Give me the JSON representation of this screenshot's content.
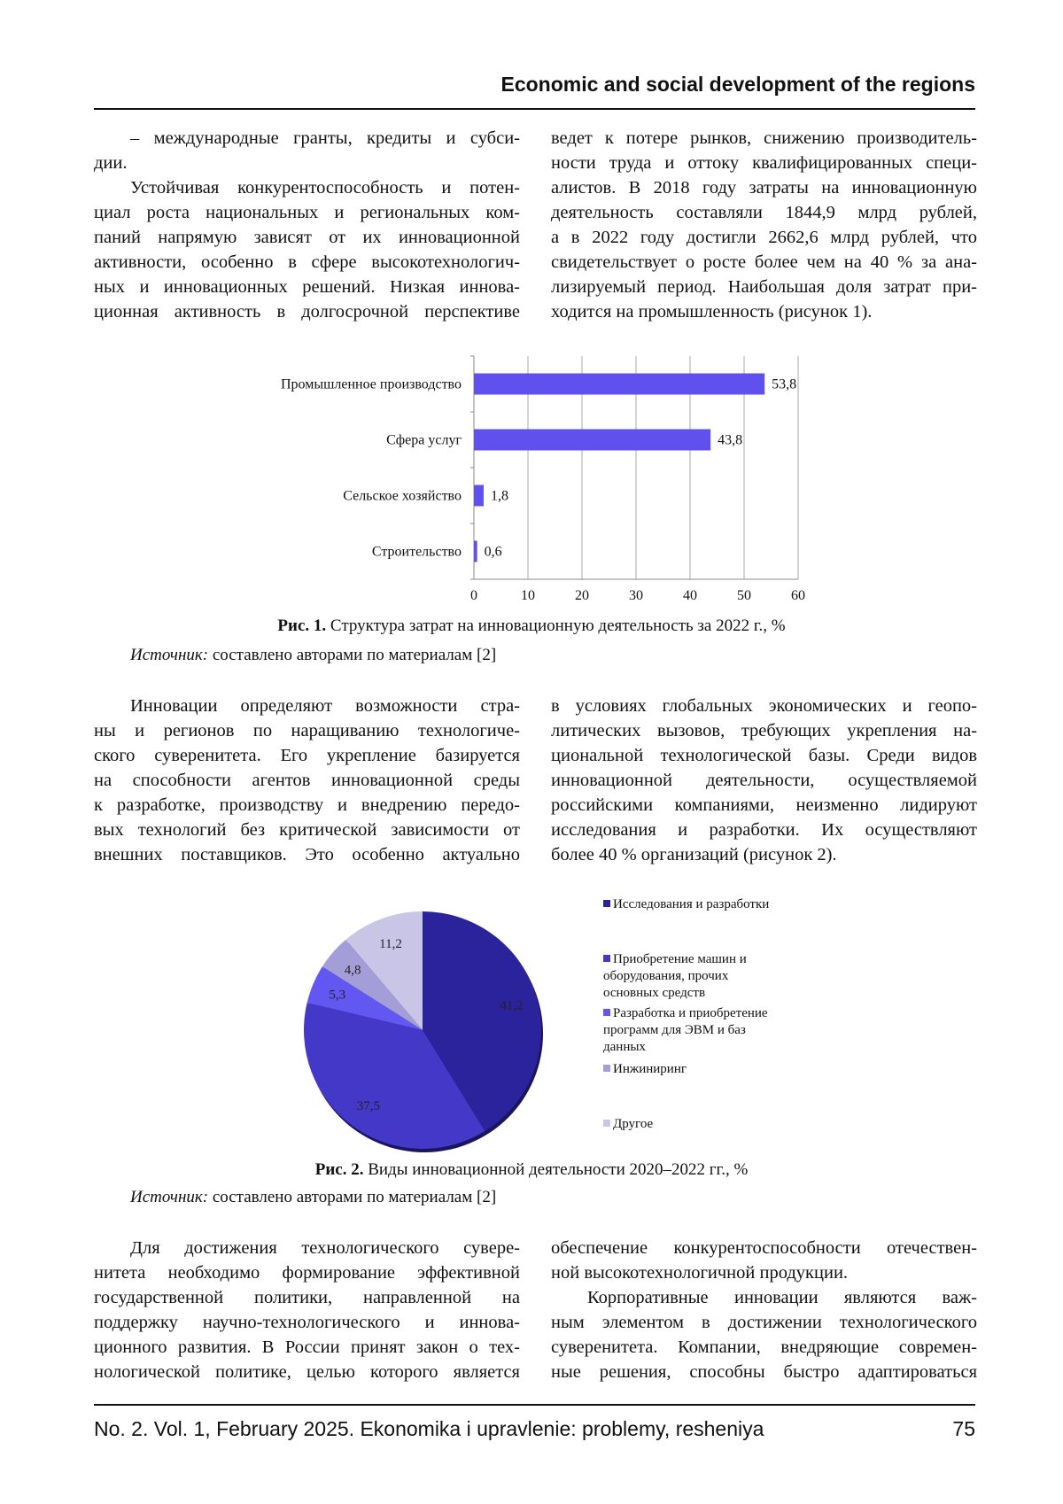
{
  "header": {
    "title": "Economic and social development of the regions"
  },
  "blocks": {
    "b1l": [
      "– международные гранты, кредиты и субси-",
      "дии.",
      "Устойчивая конкурентоспособность и потен-",
      "циал роста национальных и региональных ком-",
      "паний напрямую зависят от их инновационной",
      "активности, особенно в сфере высокотехнологич-",
      "ных и инновационных решений. Низкая иннова-",
      "ционная активность в долгосрочной перспективе"
    ],
    "b1r": [
      "ведет к потере рынков, снижению производитель-",
      "ности труда и оттоку квалифицированных специ-",
      "алистов. В 2018 году затраты на инновационную",
      "деятельность составляли 1844,9 млрд рублей,",
      "а в 2022 году достигли 2662,6 млрд рублей, что",
      "свидетельствует о росте более чем на 40 % за ана-",
      "лизируемый период. Наибольшая доля затрат при-",
      "ходится на промышленность (рисунок 1)."
    ],
    "b2l": [
      "Инновации определяют возможности стра-",
      "ны и регионов по наращиванию технологиче-",
      "ского суверенитета. Его укрепление базируется",
      "на способности агентов инновационной среды",
      "к разработке, производству и внедрению передо-",
      "вых технологий без критической зависимости от",
      "внешних поставщиков. Это особенно актуально"
    ],
    "b2r": [
      "в условиях глобальных экономических и геопо-",
      "литических вызовов, требующих укрепления на-",
      "циональной технологической базы. Среди видов",
      "инновационной деятельности, осуществляемой",
      "российскими компаниями, неизменно лидируют",
      "исследования и разработки. Их осуществляют",
      "более 40 % организаций (рисунок 2)."
    ],
    "b3l": [
      "Для достижения технологического сувере-",
      "нитета необходимо формирование эффективной",
      "государственной политики, направленной на",
      "поддержку научно-технологического и иннова-",
      "ционного развития. В России принят закон о тех-",
      "нологической политике, целью которого является"
    ],
    "b3r": [
      "обеспечение конкурентоспособности отечествен-",
      "ной высокотехнологичной продукции.",
      "Корпоративные инновации являются важ-",
      "ным элементом в достижении технологического",
      "суверенитета. Компании, внедряющие современ-",
      "ные решения, способны быстро адаптироваться"
    ]
  },
  "fig1": {
    "label": "Рис. 1.",
    "caption": " Структура затрат на инновационную деятельность за 2022 г., %",
    "source_label": "Источник:",
    "source_text": " составлено авторами по материалам [2]"
  },
  "fig2": {
    "label": "Рис. 2.",
    "caption": " Виды инновационной деятельности 2020–2022 гг., %",
    "source_label": "Источник:",
    "source_text": " составлено авторами по материалам [2]"
  },
  "footer": {
    "journal": "No. 2. Vol. 1, February 2025. Ekonomika i upravlenie: problemy, resheniya",
    "page": "75"
  },
  "chart_data": [
    {
      "type": "bar",
      "orientation": "horizontal",
      "categories": [
        "Промышленное производство",
        "Сфера услуг",
        "Сельское хозяйство",
        "Строительство"
      ],
      "values": [
        53.8,
        43.8,
        1.8,
        0.6
      ],
      "value_labels": [
        "53,8",
        "43,8",
        "1,8",
        "0,6"
      ],
      "xlim": [
        0,
        60
      ],
      "xticks": [
        "0",
        "10",
        "20",
        "30",
        "40",
        "50",
        "60"
      ],
      "grid": true,
      "color": "#6050ee"
    },
    {
      "type": "pie",
      "categories": [
        "Исследования и разработки",
        "Приобретение машин и оборудования, прочих основных средств",
        "Разработка и приобретение программ для ЭВМ и баз данных",
        "Инжиниринг",
        "Другое"
      ],
      "values": [
        41.2,
        37.5,
        5.3,
        4.8,
        11.2
      ],
      "value_labels": [
        "41,2",
        "37,5",
        "5,3",
        "4,8",
        "11,2"
      ],
      "colors": [
        "#2b239c",
        "#4438c8",
        "#6257f0",
        "#a49ed8",
        "#c9c5e6"
      ],
      "legend": "right"
    }
  ]
}
